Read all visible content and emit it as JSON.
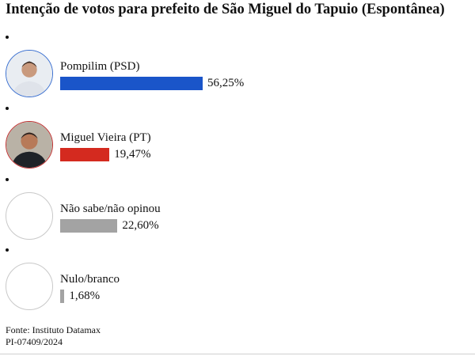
{
  "title": "Intenção de votos para prefeito de São Miguel do Tapuio (Espontânea)",
  "chart_data": {
    "type": "bar",
    "orientation": "horizontal",
    "title": "Intenção de votos para prefeito de São Miguel do Tapuio (Espontânea)",
    "categories": [
      "Pompilim (PSD)",
      "Miguel Vieira (PT)",
      "Não sabe/não opinou",
      "Nulo/branco"
    ],
    "values": [
      56.25,
      19.47,
      22.6,
      1.68
    ],
    "value_labels": [
      "56,25%",
      "19,47%",
      "22,60%",
      "1,68%"
    ],
    "colors": [
      "#1a55c9",
      "#d42a1f",
      "#a3a3a3",
      "#a3a3a3"
    ],
    "icons": [
      "candidate-photo",
      "candidate-photo",
      "empty-circle",
      "empty-circle"
    ],
    "legend": "none",
    "grid": false
  },
  "footer": {
    "source": "Fonte: Instituto Datamax",
    "registration": "PI-07409/2024"
  }
}
